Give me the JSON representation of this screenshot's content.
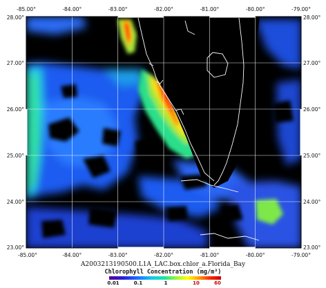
{
  "map": {
    "longitude_ticks": [
      "-85.00°",
      "-84.00°",
      "-83.00°",
      "-82.00°",
      "-81.00°",
      "-80.00°",
      "-79.00°"
    ],
    "latitude_ticks": [
      "28.00°",
      "27.00°",
      "26.00°",
      "25.00°",
      "24.00°",
      "23.00°"
    ],
    "filename": "A2003213190500.L1A_LAC.box.chlor_a.Florida_Bay",
    "colorbar": {
      "title": "Chlorophyll Concentration (mg/m³)",
      "ticks": [
        "0.01",
        "0.1",
        "1",
        "10",
        "60"
      ],
      "scale": "log",
      "range": [
        0.01,
        60
      ]
    },
    "colors": {
      "land": "#000000",
      "coastline": "#ffffff",
      "graticule": "#ffffff"
    }
  }
}
